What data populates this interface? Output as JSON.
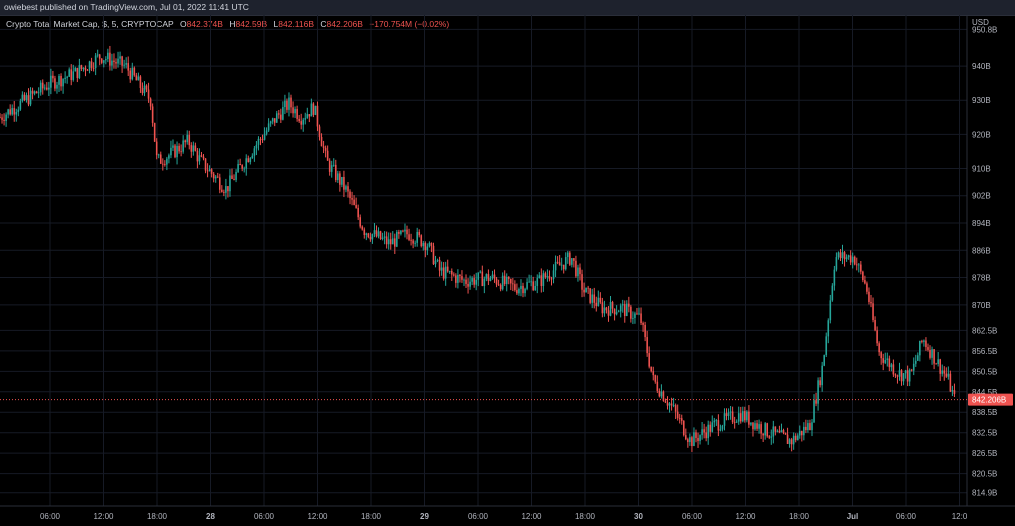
{
  "header": {
    "publish_text": "owiebest published on TradingView.com, Jul 01, 2022 11:41 UTC"
  },
  "legend": {
    "symbol": "Crypto Total Market Cap, $, 5, CRYPTOCAP",
    "open_label": "O",
    "open_value": "842.374B",
    "high_label": "H",
    "high_value": "842.59B",
    "low_label": "L",
    "low_value": "842.116B",
    "close_label": "C",
    "close_value": "842.206B",
    "change": "−170.754M (−0.02%)"
  },
  "colors": {
    "background": "#000000",
    "up": "#26a69a",
    "down": "#ef5350",
    "grid": "#161a25",
    "axis_text": "#b2b5be",
    "price_line": "#ef5350"
  },
  "chart_data": {
    "type": "candlestick",
    "title": "Crypto Total Market Cap, $, 5, CRYPTOCAP",
    "currency_label": "USD",
    "last_price": 842.206,
    "last_price_label": "842.206B",
    "y_axis_ticks": [
      950.8,
      940,
      930,
      920,
      910,
      902,
      894,
      886,
      878,
      870,
      862.5,
      856.5,
      850.5,
      844.5,
      838.5,
      832.5,
      826.5,
      820.5,
      814.9
    ],
    "y_axis_labels": [
      "950.8B",
      "940B",
      "930B",
      "920B",
      "910B",
      "902B",
      "894B",
      "886B",
      "878B",
      "870B",
      "862.5B",
      "856.5B",
      "850.5B",
      "844.5B",
      "838.5B",
      "832.5B",
      "826.5B",
      "820.5B",
      "814.9B"
    ],
    "x_axis_labels": [
      "06:00",
      "12:00",
      "18:00",
      "28",
      "06:00",
      "12:00",
      "18:00",
      "29",
      "06:00",
      "12:00",
      "18:00",
      "30",
      "06:00",
      "12:00",
      "18:00",
      "Jul",
      "06:00",
      "12:0"
    ],
    "x_axis_bold": [
      "28",
      "29",
      "30",
      "Jul"
    ],
    "price_path": [
      [
        0,
        925
      ],
      [
        4,
        930
      ],
      [
        8,
        935
      ],
      [
        12,
        938
      ],
      [
        16,
        943
      ],
      [
        20,
        940
      ],
      [
        24,
        930
      ],
      [
        25,
        912
      ],
      [
        27,
        914
      ],
      [
        30,
        918
      ],
      [
        32,
        912
      ],
      [
        36,
        904
      ],
      [
        40,
        915
      ],
      [
        44,
        925
      ],
      [
        46,
        929
      ],
      [
        48,
        925
      ],
      [
        50,
        928
      ],
      [
        52,
        912
      ],
      [
        55,
        904
      ],
      [
        58,
        892
      ],
      [
        62,
        888
      ],
      [
        65,
        891
      ],
      [
        68,
        888
      ],
      [
        70,
        880
      ],
      [
        74,
        877
      ],
      [
        78,
        878
      ],
      [
        82,
        875
      ],
      [
        86,
        877
      ],
      [
        88,
        880
      ],
      [
        91,
        884
      ],
      [
        93,
        874
      ],
      [
        96,
        869
      ],
      [
        99,
        869
      ],
      [
        102,
        866
      ],
      [
        104,
        848
      ],
      [
        107,
        840
      ],
      [
        110,
        830
      ],
      [
        114,
        835
      ],
      [
        118,
        838
      ],
      [
        122,
        833
      ],
      [
        126,
        830
      ],
      [
        129,
        835
      ],
      [
        131,
        852
      ],
      [
        133,
        884
      ],
      [
        136,
        884
      ],
      [
        138,
        875
      ],
      [
        140,
        856
      ],
      [
        143,
        850
      ],
      [
        145,
        849
      ],
      [
        147,
        860
      ],
      [
        149,
        854
      ],
      [
        151,
        848
      ],
      [
        152,
        842.2
      ]
    ],
    "x_domain": [
      0,
      154
    ],
    "y_domain": [
      811,
      955
    ]
  }
}
